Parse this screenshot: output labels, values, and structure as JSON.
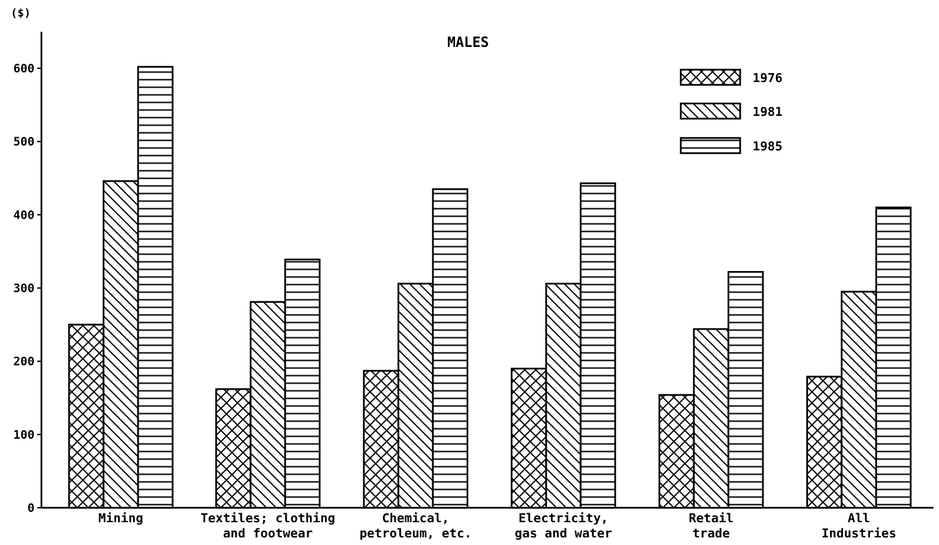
{
  "chart_data": {
    "type": "bar",
    "title": "MALES",
    "ylabel": "($)",
    "xlabel": "",
    "ylim": [
      0,
      650
    ],
    "yticks": [
      0,
      100,
      200,
      300,
      400,
      500,
      600
    ],
    "grid": false,
    "legend_position": "top-right",
    "categories": [
      [
        "Mining"
      ],
      [
        "Textiles; clothing",
        "and footwear"
      ],
      [
        "Chemical,",
        "petroleum, etc."
      ],
      [
        "Electricity,",
        "gas and water"
      ],
      [
        "Retail",
        "trade"
      ],
      [
        "All",
        "Industries"
      ]
    ],
    "series": [
      {
        "name": "1976",
        "pattern": "crosshatch",
        "values": [
          250,
          162,
          187,
          190,
          154,
          179
        ]
      },
      {
        "name": "1981",
        "pattern": "diagonal",
        "values": [
          446,
          281,
          306,
          306,
          244,
          295
        ]
      },
      {
        "name": "1985",
        "pattern": "horizontal",
        "values": [
          602,
          339,
          435,
          443,
          322,
          410
        ]
      }
    ],
    "colors": {
      "ink": "#000000",
      "background": "#ffffff"
    }
  }
}
